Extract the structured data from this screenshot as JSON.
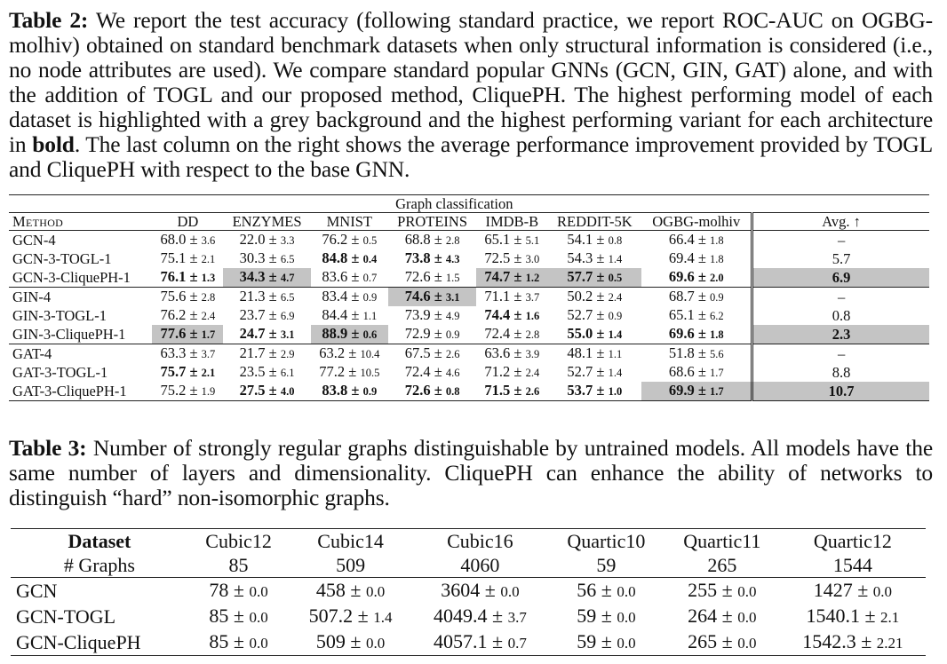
{
  "table2": {
    "caption": {
      "label": "Table 2:",
      "before_bold": "We report the test accuracy (following standard practice, we report ROC-AUC on OGBG-molhiv) obtained on standard benchmark datasets when only structural information is considered (i.e., no node attributes are used). We compare standard popular GNNs (GCN, GIN, GAT) alone, and with the addition of TOGL and our proposed method, CliquePH. The highest performing model of each dataset is highlighted with a grey background and the highest performing variant for each architecture in",
      "bold_word": "bold",
      "after_bold": ". The last column on the right shows the average performance improvement provided by TOGL and CliquePH with respect to the base GNN."
    },
    "group_header": "Graph classification",
    "columns": [
      "Method",
      "DD",
      "ENZYMES",
      "MNIST",
      "PROTEINS",
      "IMDB-B",
      "REDDIT-5K",
      "OGBG-molhiv",
      "Avg. ↑"
    ],
    "rows": [
      {
        "method": "GCN-4",
        "cells": [
          {
            "v": "68.0",
            "s": "3.6"
          },
          {
            "v": "22.0",
            "s": "3.3"
          },
          {
            "v": "76.2",
            "s": "0.5"
          },
          {
            "v": "68.8",
            "s": "2.8"
          },
          {
            "v": "65.1",
            "s": "5.1"
          },
          {
            "v": "54.1",
            "s": "0.8"
          },
          {
            "v": "66.4",
            "s": "1.8"
          }
        ],
        "avg": "–"
      },
      {
        "method": "GCN-3-TOGL-1",
        "cells": [
          {
            "v": "75.1",
            "s": "2.1"
          },
          {
            "v": "30.3",
            "s": "6.5"
          },
          {
            "v": "84.8",
            "s": "0.4",
            "bold": true
          },
          {
            "v": "73.8",
            "s": "4.3",
            "bold": true
          },
          {
            "v": "72.5",
            "s": "3.0"
          },
          {
            "v": "54.3",
            "s": "1.4"
          },
          {
            "v": "69.4",
            "s": "1.8"
          }
        ],
        "avg": "5.7"
      },
      {
        "method": "GCN-3-CliquePH-1",
        "cells": [
          {
            "v": "76.1",
            "s": "1.3",
            "bold": true
          },
          {
            "v": "34.3",
            "s": "4.7",
            "bold": true,
            "grey": true
          },
          {
            "v": "83.6",
            "s": "0.7"
          },
          {
            "v": "72.6",
            "s": "1.5"
          },
          {
            "v": "74.7",
            "s": "1.2",
            "bold": true,
            "grey": true
          },
          {
            "v": "57.7",
            "s": "0.5",
            "bold": true,
            "grey": true
          },
          {
            "v": "69.6",
            "s": "2.0",
            "bold": true
          }
        ],
        "avg": "6.9",
        "avg_bold": true,
        "avg_grey": true
      },
      {
        "method": "GIN-4",
        "cells": [
          {
            "v": "75.6",
            "s": "2.8"
          },
          {
            "v": "21.3",
            "s": "6.5"
          },
          {
            "v": "83.4",
            "s": "0.9"
          },
          {
            "v": "74.6",
            "s": "3.1",
            "bold": true,
            "grey": true
          },
          {
            "v": "71.1",
            "s": "3.7"
          },
          {
            "v": "50.2",
            "s": "2.4"
          },
          {
            "v": "68.7",
            "s": "0.9"
          }
        ],
        "avg": "–"
      },
      {
        "method": "GIN-3-TOGL-1",
        "cells": [
          {
            "v": "76.2",
            "s": "2.4"
          },
          {
            "v": "23.7",
            "s": "6.9"
          },
          {
            "v": "84.4",
            "s": "1.1"
          },
          {
            "v": "73.9",
            "s": "4.9"
          },
          {
            "v": "74.4",
            "s": "1.6",
            "bold": true
          },
          {
            "v": "52.7",
            "s": "0.9"
          },
          {
            "v": "65.1",
            "s": "6.2"
          }
        ],
        "avg": "0.8"
      },
      {
        "method": "GIN-3-CliquePH-1",
        "cells": [
          {
            "v": "77.6",
            "s": "1.7",
            "bold": true,
            "grey": true
          },
          {
            "v": "24.7",
            "s": "3.1",
            "bold": true
          },
          {
            "v": "88.9",
            "s": "0.6",
            "bold": true,
            "grey": true
          },
          {
            "v": "72.9",
            "s": "0.9"
          },
          {
            "v": "72.4",
            "s": "2.8"
          },
          {
            "v": "55.0",
            "s": "1.4",
            "bold": true
          },
          {
            "v": "69.6",
            "s": "1.8",
            "bold": true
          }
        ],
        "avg": "2.3",
        "avg_bold": true,
        "avg_grey": true
      },
      {
        "method": "GAT-4",
        "cells": [
          {
            "v": "63.3",
            "s": "3.7"
          },
          {
            "v": "21.7",
            "s": "2.9"
          },
          {
            "v": "63.2",
            "s": "10.4"
          },
          {
            "v": "67.5",
            "s": "2.6"
          },
          {
            "v": "63.6",
            "s": "3.9"
          },
          {
            "v": "48.1",
            "s": "1.1"
          },
          {
            "v": "51.8",
            "s": "5.6"
          }
        ],
        "avg": "–"
      },
      {
        "method": "GAT-3-TOGL-1",
        "cells": [
          {
            "v": "75.7",
            "s": "2.1",
            "bold": true
          },
          {
            "v": "23.5",
            "s": "6.1"
          },
          {
            "v": "77.2",
            "s": "10.5"
          },
          {
            "v": "72.4",
            "s": "4.6"
          },
          {
            "v": "71.2",
            "s": "2.4"
          },
          {
            "v": "52.7",
            "s": "1.4"
          },
          {
            "v": "68.6",
            "s": "1.7"
          }
        ],
        "avg": "8.8"
      },
      {
        "method": "GAT-3-CliquePH-1",
        "cells": [
          {
            "v": "75.2",
            "s": "1.9"
          },
          {
            "v": "27.5",
            "s": "4.0",
            "bold": true
          },
          {
            "v": "83.8",
            "s": "0.9",
            "bold": true
          },
          {
            "v": "72.6",
            "s": "0.8",
            "bold": true
          },
          {
            "v": "71.5",
            "s": "2.6",
            "bold": true
          },
          {
            "v": "53.7",
            "s": "1.0",
            "bold": true
          },
          {
            "v": "69.9",
            "s": "1.7",
            "bold": true,
            "grey": true
          }
        ],
        "avg": "10.7",
        "avg_bold": true,
        "avg_grey": true
      }
    ],
    "group_separators_after": [
      2,
      5
    ]
  },
  "table3": {
    "caption": {
      "label": "Table 3:",
      "text": "Number of strongly regular graphs distinguishable by untrained models. All models have the same number of layers and dimensionality. CliquePH can enhance the ability of networks to distinguish “hard” non-isomorphic graphs."
    },
    "header": {
      "dataset_label": "Dataset",
      "graphs_label": "# Graphs",
      "datasets": [
        "Cubic12",
        "Cubic14",
        "Cubic16",
        "Quartic10",
        "Quartic11",
        "Quartic12"
      ],
      "graph_counts": [
        "85",
        "509",
        "4060",
        "59",
        "265",
        "1544"
      ]
    },
    "rows": [
      {
        "model": "GCN",
        "cells": [
          {
            "v": "78",
            "s": "0.0"
          },
          {
            "v": "458",
            "s": "0.0"
          },
          {
            "v": "3604",
            "s": "0.0"
          },
          {
            "v": "56",
            "s": "0.0"
          },
          {
            "v": "255",
            "s": "0.0"
          },
          {
            "v": "1427",
            "s": "0.0"
          }
        ]
      },
      {
        "model": "GCN-TOGL",
        "cells": [
          {
            "v": "85",
            "s": "0.0"
          },
          {
            "v": "507.2",
            "s": "1.4"
          },
          {
            "v": "4049.4",
            "s": "3.7"
          },
          {
            "v": "59",
            "s": "0.0"
          },
          {
            "v": "264",
            "s": "0.0"
          },
          {
            "v": "1540.1",
            "s": "2.1"
          }
        ]
      },
      {
        "model": "GCN-CliquePH",
        "cells": [
          {
            "v": "85",
            "s": "0.0"
          },
          {
            "v": "509",
            "s": "0.0"
          },
          {
            "v": "4057.1",
            "s": "0.7"
          },
          {
            "v": "59",
            "s": "0.0"
          },
          {
            "v": "265",
            "s": "0.0"
          },
          {
            "v": "1542.3",
            "s": "2.21"
          }
        ]
      }
    ]
  }
}
